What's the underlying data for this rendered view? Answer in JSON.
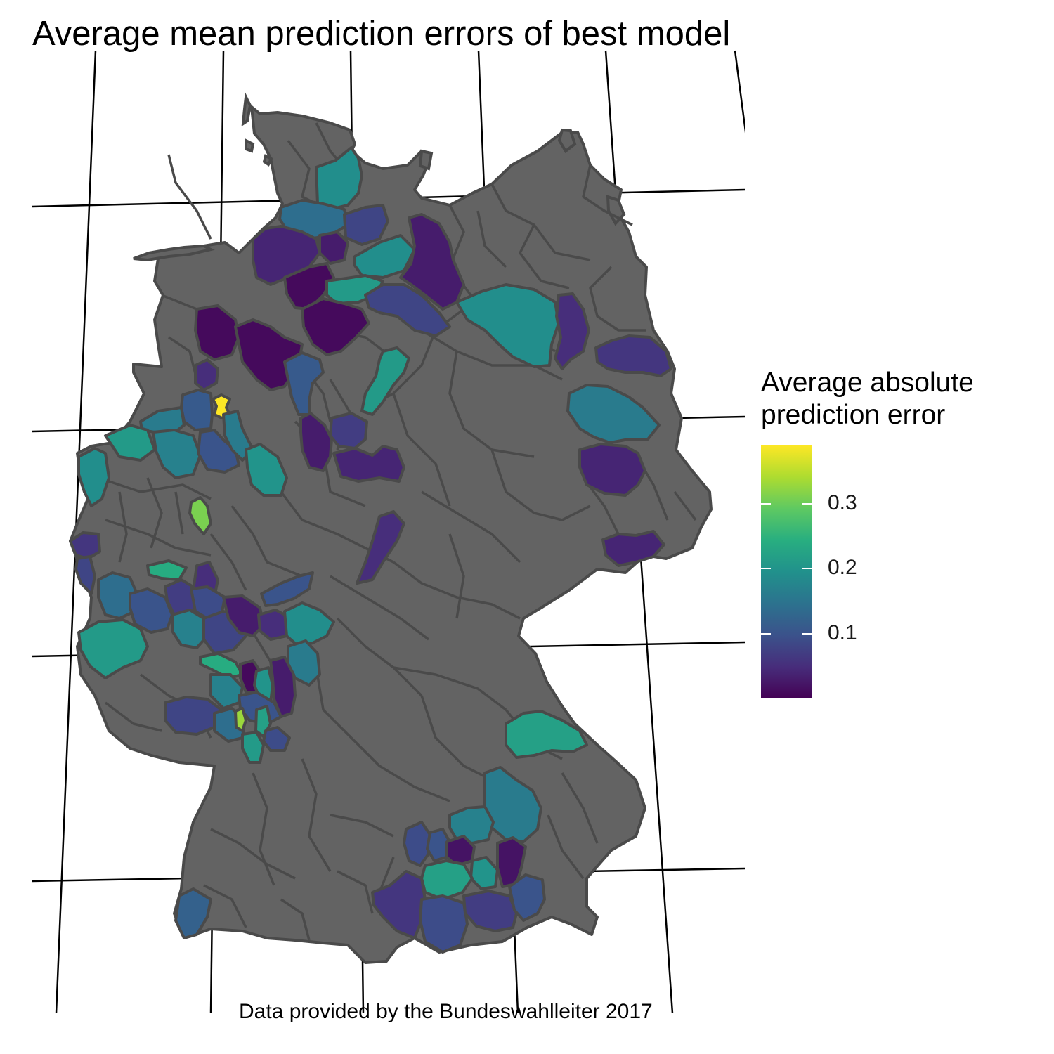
{
  "title": "Average mean prediction errors of best model",
  "caption": "Data provided by the Bundeswahlleiter 2017",
  "legend": {
    "title_lines": [
      "Average absolute",
      "prediction error"
    ],
    "min": 0.0,
    "max": 0.39,
    "ticks": [
      {
        "value": 0.1,
        "label": "0.1"
      },
      {
        "value": 0.2,
        "label": "0.2"
      },
      {
        "value": 0.3,
        "label": "0.3"
      }
    ],
    "colormap": "viridis"
  },
  "colors": {
    "base_region": "#636363",
    "border": "#4a4a4a",
    "graticule": "#000000",
    "background": "#ffffff"
  }
}
